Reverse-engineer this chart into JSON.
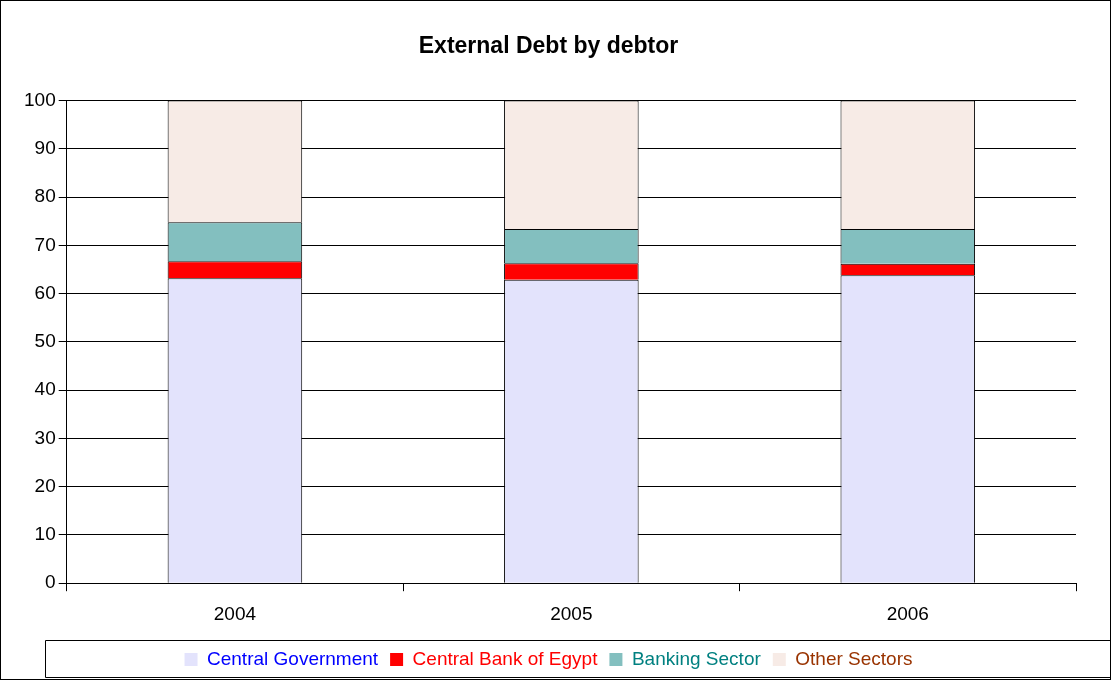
{
  "chart_data": {
    "type": "bar",
    "title": "External Debt by debtor",
    "categories": [
      "2004",
      "2005",
      "2006"
    ],
    "stacked": true,
    "series": [
      {
        "name": "Central Government",
        "color": "#e3e3fc",
        "values": [
          63.2,
          62.9,
          63.8
        ]
      },
      {
        "name": "Central Bank of Egypt",
        "color": "#ff0000",
        "values": [
          3.5,
          3.4,
          2.4
        ]
      },
      {
        "name": "Banking Sector",
        "color": "#83bfbf",
        "values": [
          8.1,
          7.1,
          7.2
        ]
      },
      {
        "name": "Other Sectors",
        "color": "#f7ebe6",
        "values": [
          25.2,
          26.6,
          26.6
        ]
      }
    ],
    "ylim": [
      0,
      100
    ],
    "yticks": [
      0,
      10,
      20,
      30,
      40,
      50,
      60,
      70,
      80,
      90,
      100
    ],
    "grid": "y",
    "legend": "bottom"
  }
}
